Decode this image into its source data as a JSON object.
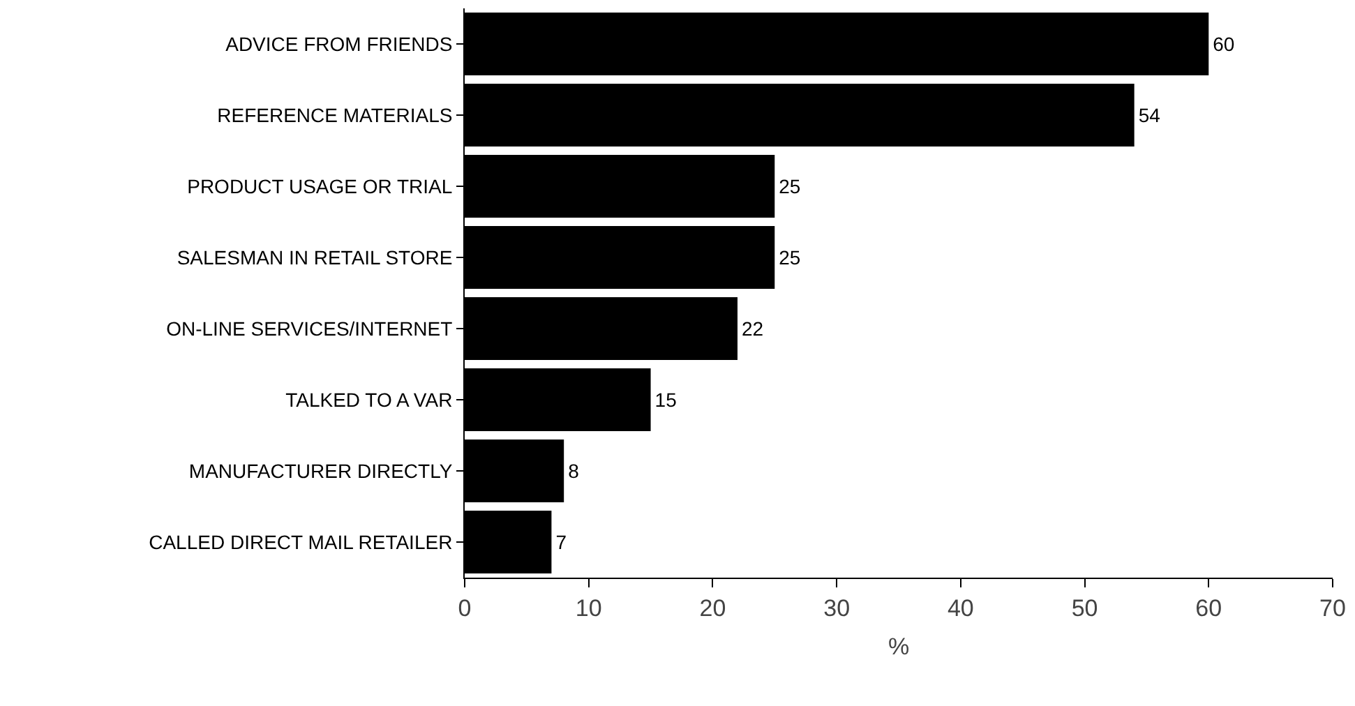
{
  "chart_data": {
    "type": "bar",
    "orientation": "horizontal",
    "xlabel": "%",
    "categories": [
      "ADVICE FROM FRIENDS",
      "REFERENCE MATERIALS",
      "PRODUCT USAGE OR TRIAL",
      "SALESMAN IN RETAIL STORE",
      "ON-LINE SERVICES/INTERNET",
      "TALKED TO A VAR",
      "MANUFACTURER DIRECTLY",
      "CALLED DIRECT MAIL RETAILER"
    ],
    "values": [
      60,
      54,
      25,
      25,
      22,
      15,
      8,
      7
    ],
    "color": "#000000",
    "data_labels": true,
    "xlim": [
      0,
      70
    ],
    "xticks": [
      0,
      10,
      20,
      30,
      40,
      50,
      60,
      70
    ],
    "grid": false,
    "legend": false
  }
}
